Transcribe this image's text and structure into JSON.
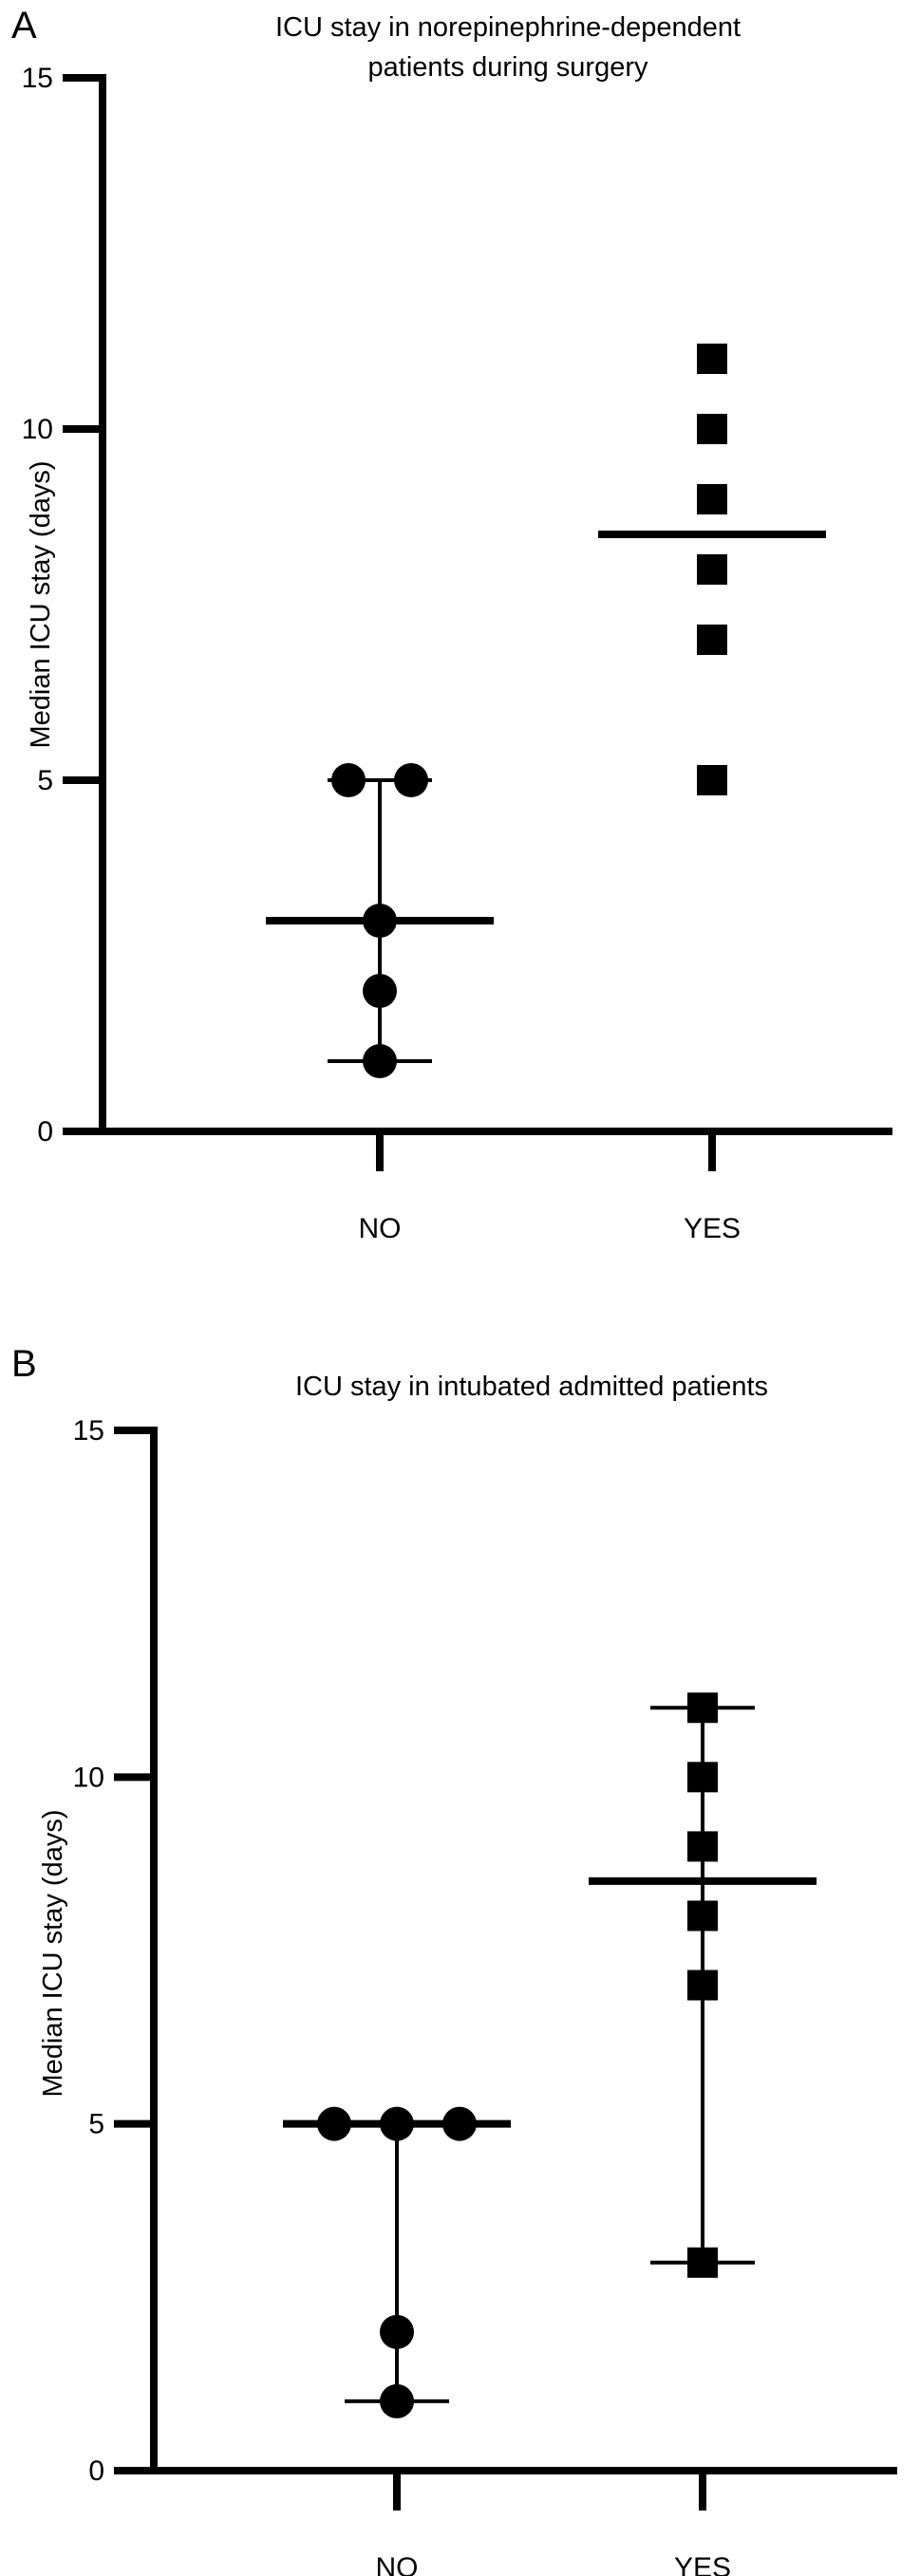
{
  "chart_data": [
    {
      "panel": "A",
      "type": "scatter",
      "title": [
        "ICU stay in norepinephrine-dependent",
        "patients during surgery"
      ],
      "xlabel": "",
      "ylabel": "Median ICU stay (days)",
      "ylim": [
        0,
        15
      ],
      "yticks": [
        0,
        5,
        10,
        15
      ],
      "categories": [
        "NO",
        "YES"
      ],
      "grid": false,
      "series": [
        {
          "category": "NO",
          "marker": "circle",
          "values": [
            5,
            5,
            3,
            2,
            1
          ],
          "median": 3,
          "range": [
            1,
            5
          ]
        },
        {
          "category": "YES",
          "marker": "square",
          "values": [
            11,
            10,
            9,
            8,
            7,
            5
          ],
          "median": 8.5,
          "range": null
        }
      ]
    },
    {
      "panel": "B",
      "type": "scatter",
      "title": [
        "ICU stay in intubated admitted patients"
      ],
      "xlabel": "",
      "ylabel": "Median ICU stay (days)",
      "ylim": [
        0,
        15
      ],
      "yticks": [
        0,
        5,
        10,
        15
      ],
      "categories": [
        "NO",
        "YES"
      ],
      "grid": false,
      "series": [
        {
          "category": "NO",
          "marker": "circle",
          "values": [
            5,
            5,
            5,
            2,
            1
          ],
          "median": 5,
          "range": [
            1,
            5
          ]
        },
        {
          "category": "YES",
          "marker": "square",
          "values": [
            11,
            10,
            9,
            8,
            7,
            3
          ],
          "median": 8.5,
          "range": [
            3,
            11
          ]
        }
      ]
    }
  ]
}
